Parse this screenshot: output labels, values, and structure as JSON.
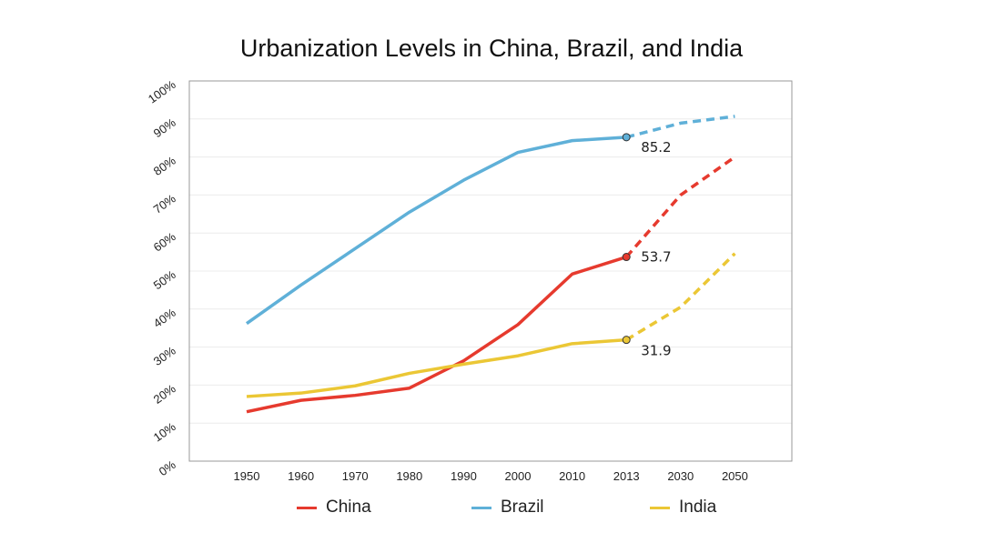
{
  "chart_data": {
    "type": "line",
    "title": "Urbanization Levels in China, Brazil, and India",
    "xlabel": "",
    "ylabel": "",
    "ylim": [
      0,
      100
    ],
    "y_ticks": [
      "0%",
      "10%",
      "20%",
      "30%",
      "40%",
      "50%",
      "60%",
      "70%",
      "80%",
      "90%",
      "100%"
    ],
    "categories": [
      "1950",
      "1960",
      "1970",
      "1980",
      "1990",
      "2000",
      "2010",
      "2013",
      "2030",
      "2050"
    ],
    "projection_start": "2013",
    "series": [
      {
        "name": "China",
        "color": "#e63a2e",
        "values": [
          13,
          16,
          17.3,
          19.2,
          26.4,
          35.9,
          49.2,
          53.7,
          70,
          80
        ],
        "label": "53.7"
      },
      {
        "name": "Brazil",
        "color": "#5fb0d8",
        "values": [
          36.2,
          46.3,
          55.9,
          65.5,
          73.9,
          81.2,
          84.3,
          85.2,
          88.9,
          90.7
        ],
        "label": "85.2"
      },
      {
        "name": "India",
        "color": "#ebc735",
        "values": [
          17,
          17.9,
          19.8,
          23.1,
          25.5,
          27.7,
          30.9,
          31.9,
          40.5,
          54.6
        ],
        "label": "31.9"
      }
    ],
    "legend_position": "bottom",
    "grid": true
  }
}
